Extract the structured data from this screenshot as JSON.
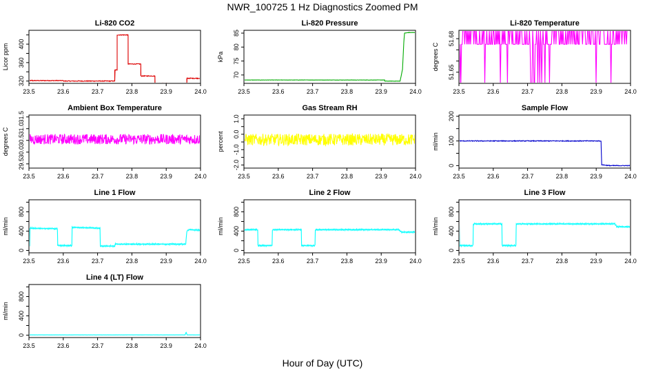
{
  "figure": {
    "title": "NWR_100725  1 Hz Diagnostics Zoomed PM",
    "xlabel": "Hour of Day (UTC)"
  },
  "chart_data": [
    {
      "type": "line",
      "title": "Li-820 CO2",
      "ylabel": "Licor ppm",
      "color": "#dd0000",
      "xlim": [
        23.5,
        24.0
      ],
      "ylim": [
        315,
        430
      ],
      "xticks": [
        "23.5",
        "23.6",
        "23.7",
        "23.8",
        "23.9",
        "24.0"
      ],
      "yticks": [
        320,
        340,
        360,
        380,
        400,
        420
      ],
      "ytick_labels": [
        "320",
        "",
        "360",
        "",
        "400",
        ""
      ],
      "noise": 0.8,
      "series": [
        {
          "name": "Li-820 CO2",
          "x": [
            23.5,
            23.51,
            23.6,
            23.6,
            23.75,
            23.75,
            23.757,
            23.757,
            23.789,
            23.789,
            23.826,
            23.826,
            23.867,
            23.867,
            23.91,
            23.91,
            23.96,
            23.96,
            24.0
          ],
          "y": [
            321,
            321,
            321,
            320,
            320,
            344,
            344,
            420,
            420,
            357,
            357,
            331,
            331,
            315,
            315,
            314,
            314,
            326,
            326
          ]
        }
      ]
    },
    {
      "type": "line",
      "title": "Li-820 Pressure",
      "ylabel": "kPa",
      "color": "#00aa00",
      "xlim": [
        23.5,
        24.0
      ],
      "ylim": [
        67,
        86
      ],
      "xticks": [
        "23.5",
        "23.6",
        "23.7",
        "23.8",
        "23.9",
        "24.0"
      ],
      "yticks": [
        70,
        75,
        80,
        85
      ],
      "ytick_labels": [
        "70",
        "75",
        "80",
        "85"
      ],
      "noise": 0.05,
      "series": [
        {
          "name": "Li-820 Pressure",
          "x": [
            23.5,
            23.91,
            23.91,
            23.955,
            23.962,
            23.966,
            23.968,
            23.98,
            24.0
          ],
          "y": [
            68.2,
            68.2,
            67.8,
            67.8,
            72,
            82,
            85,
            85.2,
            85.2
          ]
        }
      ]
    },
    {
      "type": "line",
      "title": "Li-820 Temperature",
      "ylabel": "degrees C",
      "color": "#ff00ff",
      "xlim": [
        23.5,
        24.0
      ],
      "ylim": [
        51.64,
        51.6875
      ],
      "xticks": [
        "23.5",
        "23.6",
        "23.7",
        "23.8",
        "23.9",
        "24.0"
      ],
      "yticks": [
        51.65,
        51.66,
        51.67,
        51.68
      ],
      "ytick_labels": [
        "51.65",
        "",
        "",
        "51.68"
      ],
      "series": [
        {
          "name": "Li-820 Temperature",
          "levels": [
            51.675,
            51.6875
          ],
          "low": 51.64,
          "x_start": 23.5,
          "x_end": 23.99
        }
      ]
    },
    {
      "type": "line",
      "title": "Ambient Box Temperature",
      "ylabel": "degrees C",
      "color": "#ff00ff",
      "xlim": [
        23.5,
        24.0
      ],
      "ylim": [
        29.32,
        31.58
      ],
      "xticks": [
        "23.5",
        "23.6",
        "23.7",
        "23.8",
        "23.9",
        "24.0"
      ],
      "yticks": [
        29.5,
        30.0,
        30.5,
        31.0,
        31.5
      ],
      "ytick_labels": [
        "29.5",
        "30.0",
        "30.5",
        "31.0",
        "31.5"
      ],
      "noise": 0.22,
      "series": [
        {
          "name": "Ambient Box Temperature",
          "x": [
            23.5,
            24.0
          ],
          "y": [
            30.55,
            30.55
          ]
        }
      ]
    },
    {
      "type": "line",
      "title": "Gas Stream RH",
      "ylabel": "percent",
      "color": "#ffff00",
      "xlim": [
        23.5,
        24.0
      ],
      "ylim": [
        -2.2,
        1.25
      ],
      "xticks": [
        "23.5",
        "23.6",
        "23.7",
        "23.8",
        "23.9",
        "24.0"
      ],
      "yticks": [
        -2.0,
        -1.5,
        -1.0,
        -0.5,
        0.0,
        0.5,
        1.0
      ],
      "ytick_labels": [
        "-2.0",
        "",
        "-1.0",
        "",
        "0.0",
        "",
        "1.0"
      ],
      "noise": 0.38,
      "series": [
        {
          "name": "Gas Stream RH",
          "x": [
            23.5,
            24.0
          ],
          "y": [
            -0.35,
            -0.35
          ]
        }
      ]
    },
    {
      "type": "line",
      "title": "Sample Flow",
      "ylabel": "ml/min",
      "color": "#0000cc",
      "xlim": [
        23.5,
        24.0
      ],
      "ylim": [
        -10,
        205
      ],
      "xticks": [
        "23.5",
        "23.6",
        "23.7",
        "23.8",
        "23.9",
        "24.0"
      ],
      "yticks": [
        0,
        50,
        100,
        150,
        200
      ],
      "ytick_labels": [
        "0",
        "",
        "100",
        "",
        "200"
      ],
      "noise": 1.5,
      "series": [
        {
          "name": "Sample Flow",
          "x": [
            23.5,
            23.914,
            23.916,
            23.925,
            23.94,
            24.0
          ],
          "y": [
            100,
            100,
            4,
            2,
            0,
            0
          ]
        }
      ]
    },
    {
      "type": "line",
      "title": "Line 1 Flow",
      "ylabel": "ml/min",
      "color": "#00ffff",
      "xlim": [
        23.5,
        24.0
      ],
      "ylim": [
        -50,
        1050
      ],
      "xticks": [
        "23.5",
        "23.6",
        "23.7",
        "23.8",
        "23.9",
        "24.0"
      ],
      "yticks": [
        0,
        200,
        400,
        600,
        800,
        1000
      ],
      "ytick_labels": [
        "0",
        "400",
        "800"
      ],
      "noise": 6,
      "series": [
        {
          "name": "Line 1 Flow",
          "x": [
            23.5,
            23.502,
            23.503,
            23.583,
            23.584,
            23.625,
            23.626,
            23.707,
            23.708,
            23.75,
            23.752,
            23.957,
            23.96,
            23.965,
            24.0
          ],
          "y": [
            100,
            100,
            460,
            450,
            100,
            100,
            480,
            460,
            90,
            90,
            130,
            130,
            400,
            430,
            420
          ]
        }
      ]
    },
    {
      "type": "line",
      "title": "Line 2 Flow",
      "ylabel": "ml/min",
      "color": "#00ffff",
      "xlim": [
        23.5,
        24.0
      ],
      "ylim": [
        -50,
        1050
      ],
      "xticks": [
        "23.5",
        "23.6",
        "23.7",
        "23.8",
        "23.9",
        "24.0"
      ],
      "yticks": [
        0,
        200,
        400,
        600,
        800,
        1000
      ],
      "ytick_labels": [
        "0",
        "400",
        "800"
      ],
      "noise": 6,
      "series": [
        {
          "name": "Line 2 Flow",
          "x": [
            23.5,
            23.54,
            23.541,
            23.582,
            23.583,
            23.667,
            23.668,
            23.707,
            23.708,
            23.95,
            23.96,
            24.0
          ],
          "y": [
            430,
            430,
            100,
            100,
            430,
            430,
            100,
            100,
            430,
            430,
            380,
            380
          ]
        }
      ]
    },
    {
      "type": "line",
      "title": "Line 3 Flow",
      "ylabel": "ml/min",
      "color": "#00ffff",
      "xlim": [
        23.5,
        24.0
      ],
      "ylim": [
        -50,
        1050
      ],
      "xticks": [
        "23.5",
        "23.6",
        "23.7",
        "23.8",
        "23.9",
        "24.0"
      ],
      "yticks": [
        0,
        200,
        400,
        600,
        800,
        1000
      ],
      "ytick_labels": [
        "0",
        "400",
        "800"
      ],
      "noise": 6,
      "series": [
        {
          "name": "Line 3 Flow",
          "x": [
            23.5,
            23.501,
            23.502,
            23.541,
            23.542,
            23.625,
            23.626,
            23.666,
            23.667,
            23.9,
            23.955,
            23.96,
            24.0
          ],
          "y": [
            520,
            520,
            100,
            100,
            550,
            550,
            100,
            100,
            550,
            550,
            550,
            490,
            490
          ]
        }
      ]
    },
    {
      "type": "line",
      "title": "Line 4 (LT) Flow",
      "ylabel": "ml/min",
      "color": "#00ffff",
      "xlim": [
        23.5,
        24.0
      ],
      "ylim": [
        -50,
        1050
      ],
      "xticks": [
        "23.5",
        "23.6",
        "23.7",
        "23.8",
        "23.9",
        "24.0"
      ],
      "yticks": [
        0,
        200,
        400,
        600,
        800,
        1000
      ],
      "ytick_labels": [
        "0",
        "400",
        "800"
      ],
      "noise": 1,
      "series": [
        {
          "name": "Line 4 (LT) Flow",
          "x": [
            23.5,
            23.955,
            23.958,
            23.961,
            24.0
          ],
          "y": [
            5,
            5,
            60,
            5,
            5
          ]
        }
      ]
    }
  ]
}
